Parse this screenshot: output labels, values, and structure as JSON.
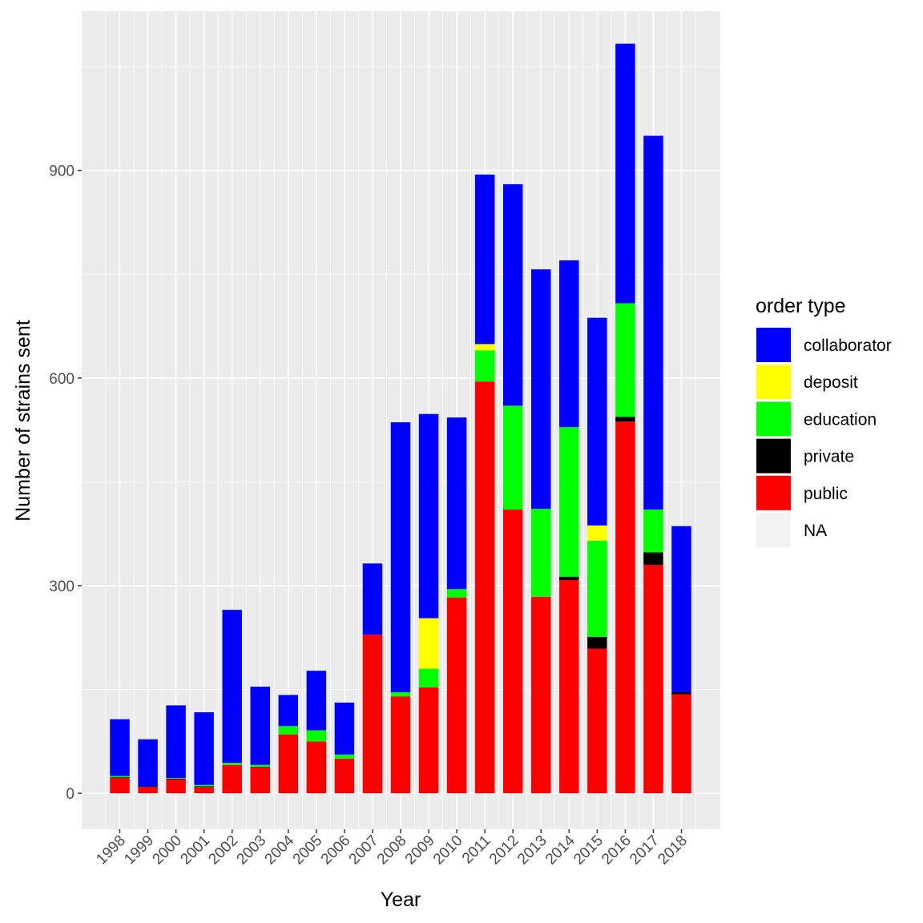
{
  "chart_data": {
    "type": "bar",
    "stacked": true,
    "xlabel": "Year",
    "ylabel": "Number of strains sent",
    "ylim": [
      -52,
      1130
    ],
    "yticks": [
      0,
      300,
      600,
      900
    ],
    "grid": true,
    "legend": {
      "title": "order type",
      "placement": "right",
      "entries": [
        "collaborator",
        "deposit",
        "education",
        "private",
        "public",
        "NA"
      ]
    },
    "colors": {
      "collaborator": "#0000ff",
      "deposit": "#ffff00",
      "education": "#00ff00",
      "private": "#000000",
      "public": "#ff0000",
      "NA": "#f2f2f2",
      "panel": "#ebebeb",
      "grid": "#ffffff"
    },
    "categories": [
      "1998",
      "1999",
      "2000",
      "2001",
      "2002",
      "2003",
      "2004",
      "2005",
      "2006",
      "2007",
      "2008",
      "2009",
      "2010",
      "2011",
      "2012",
      "2013",
      "2014",
      "2015",
      "2016",
      "2017",
      "2018"
    ],
    "series": [
      {
        "name": "public",
        "values": [
          22,
          9,
          20,
          9,
          41,
          37,
          85,
          75,
          50,
          229,
          140,
          153,
          283,
          595,
          410,
          284,
          308,
          209,
          537,
          330,
          143
        ]
      },
      {
        "name": "private",
        "values": [
          1,
          1,
          1,
          1,
          0,
          1,
          0,
          0,
          0,
          0,
          0,
          0,
          0,
          0,
          0,
          0,
          5,
          17,
          7,
          18,
          3
        ]
      },
      {
        "name": "education",
        "values": [
          2,
          0,
          1,
          2,
          3,
          3,
          12,
          16,
          6,
          0,
          6,
          27,
          12,
          45,
          150,
          127,
          216,
          139,
          164,
          62,
          0
        ]
      },
      {
        "name": "deposit",
        "values": [
          0,
          0,
          0,
          0,
          0,
          0,
          0,
          0,
          0,
          0,
          0,
          73,
          0,
          9,
          0,
          0,
          0,
          22,
          0,
          0,
          0
        ]
      },
      {
        "name": "collaborator",
        "values": [
          82,
          68,
          105,
          105,
          221,
          113,
          45,
          86,
          75,
          103,
          390,
          295,
          248,
          245,
          320,
          346,
          241,
          300,
          375,
          540,
          240
        ]
      }
    ]
  }
}
